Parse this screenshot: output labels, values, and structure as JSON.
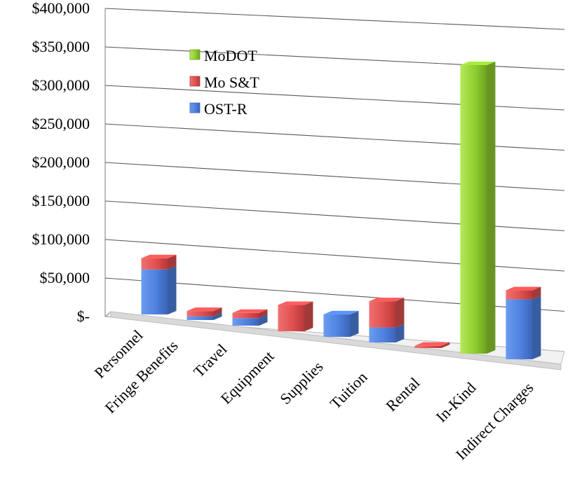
{
  "chart_data": {
    "type": "bar",
    "stacked": true,
    "three_d": true,
    "title": "",
    "xlabel": "",
    "ylabel": "",
    "ylim": [
      0,
      400000
    ],
    "y_tick_labels": [
      "$-",
      "$50,000",
      "$100,000",
      "$150,000",
      "$200,000",
      "$250,000",
      "$300,000",
      "$350,000",
      "$400,000"
    ],
    "categories": [
      "Personnel",
      "Fringe Benefits",
      "Travel",
      "Equipment",
      "Supplies",
      "Tuition",
      "Rental",
      "In-Kind",
      "Indirect Charges"
    ],
    "series": [
      {
        "name": "OST-R",
        "color": "#4f81e0",
        "values": [
          60000,
          5000,
          10000,
          0,
          30000,
          20000,
          0,
          0,
          80000
        ]
      },
      {
        "name": "Mo S&T",
        "color": "#e05050",
        "values": [
          15000,
          7000,
          7000,
          35000,
          0,
          35000,
          3000,
          0,
          12000
        ]
      },
      {
        "name": "MoDOT",
        "color": "#8fcf2f",
        "values": [
          0,
          0,
          0,
          0,
          0,
          0,
          0,
          385000,
          0
        ]
      }
    ],
    "legend": {
      "position": "top-left",
      "order": [
        "MoDOT",
        "Mo S&T",
        "OST-R"
      ]
    },
    "grid": true
  }
}
